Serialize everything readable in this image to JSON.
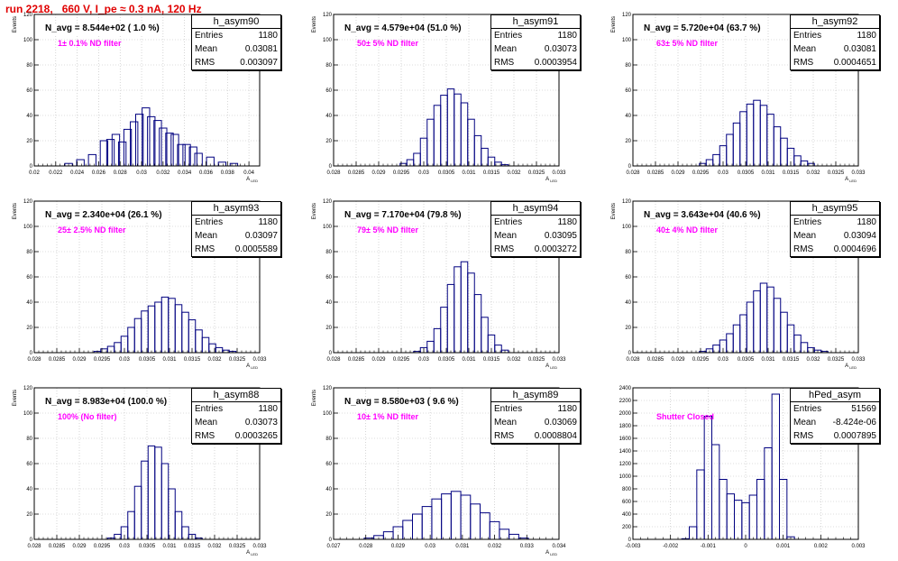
{
  "page_title": "run 2218,   660 V, I_pe ≈ 0.3 nA, 120 Hz",
  "stat_labels": {
    "entries": "Entries",
    "mean": "Mean",
    "rms": "RMS"
  },
  "colors": {
    "histogram": "#000080",
    "title": "#e00000",
    "annotation": "#ff00ff",
    "grid": "#bbbbbb"
  },
  "chart_data": [
    {
      "type": "bar",
      "name": "h_asym90",
      "navg": "N_avg = 8.544e+02 ( 1.0 %)",
      "note": "1± 0.1% ND filter",
      "entries": "1180",
      "mean": "0.03081",
      "rms": "0.003097",
      "ylabel": "Events",
      "xlabel": "A_LED",
      "xlim": [
        0.02,
        0.041
      ],
      "ylim": [
        0,
        120
      ],
      "xticks": [
        0.02,
        0.022,
        0.024,
        0.026,
        0.028,
        0.03,
        0.032,
        0.034,
        0.036,
        0.038,
        0.04
      ],
      "xtick_labels": [
        "0.02",
        "0.022",
        "0.024",
        "0.026",
        "0.028",
        "0.03",
        "0.032",
        "0.034",
        "0.036",
        "0.038",
        "0.04"
      ],
      "yticks": [
        0,
        20,
        40,
        60,
        80,
        100,
        120
      ],
      "x": [
        0.0232,
        0.0243,
        0.0254,
        0.0265,
        0.0271,
        0.0276,
        0.0282,
        0.0287,
        0.0293,
        0.0298,
        0.0304,
        0.0309,
        0.0315,
        0.032,
        0.0326,
        0.0331,
        0.0337,
        0.0342,
        0.0348,
        0.0353,
        0.0364,
        0.0375,
        0.0386
      ],
      "values": [
        2,
        5,
        9,
        20,
        21,
        25,
        19,
        29,
        35,
        41,
        46,
        39,
        36,
        30,
        26,
        25,
        17,
        17,
        15,
        10,
        7,
        3,
        2
      ]
    },
    {
      "type": "bar",
      "name": "h_asym91",
      "navg": "N_avg = 4.579e+04 (51.0 %)",
      "note": "50± 5% ND filter",
      "entries": "1180",
      "mean": "0.03073",
      "rms": "0.0003954",
      "ylabel": "Events",
      "xlabel": "A_LED",
      "xlim": [
        0.028,
        0.033
      ],
      "ylim": [
        0,
        120
      ],
      "xticks": [
        0.028,
        0.0285,
        0.029,
        0.0295,
        0.03,
        0.0305,
        0.031,
        0.0315,
        0.032,
        0.0325,
        0.033
      ],
      "xtick_labels": [
        "0.028",
        "0.0285",
        "0.029",
        "0.0295",
        "0.03",
        "0.0305",
        "0.031",
        "0.0315",
        "0.032",
        "0.0325",
        "0.033"
      ],
      "yticks": [
        0,
        20,
        40,
        60,
        80,
        100,
        120
      ],
      "x": [
        0.02955,
        0.0297,
        0.02985,
        0.03,
        0.03015,
        0.0303,
        0.03045,
        0.0306,
        0.03075,
        0.0309,
        0.03105,
        0.0312,
        0.03135,
        0.0315,
        0.03165,
        0.0318
      ],
      "values": [
        2,
        5,
        10,
        22,
        37,
        48,
        56,
        61,
        57,
        50,
        37,
        24,
        14,
        7,
        3,
        1
      ]
    },
    {
      "type": "bar",
      "name": "h_asym92",
      "navg": "N_avg = 5.720e+04 (63.7 %)",
      "note": "63± 5% ND filter",
      "entries": "1180",
      "mean": "0.03081",
      "rms": "0.0004651",
      "ylabel": "Events",
      "xlabel": "A_LED",
      "xlim": [
        0.028,
        0.033
      ],
      "ylim": [
        0,
        120
      ],
      "xticks": [
        0.028,
        0.0285,
        0.029,
        0.0295,
        0.03,
        0.0305,
        0.031,
        0.0315,
        0.032,
        0.0325,
        0.033
      ],
      "xtick_labels": [
        "0.028",
        "0.0285",
        "0.029",
        "0.0295",
        "0.03",
        "0.0305",
        "0.031",
        "0.0315",
        "0.032",
        "0.0325",
        "0.033"
      ],
      "yticks": [
        0,
        20,
        40,
        60,
        80,
        100,
        120
      ],
      "x": [
        0.02955,
        0.0297,
        0.02985,
        0.03,
        0.03015,
        0.0303,
        0.03045,
        0.0306,
        0.03075,
        0.0309,
        0.03105,
        0.0312,
        0.03135,
        0.0315,
        0.03165,
        0.0318,
        0.03195
      ],
      "values": [
        2,
        5,
        9,
        16,
        25,
        34,
        43,
        49,
        52,
        48,
        41,
        31,
        22,
        14,
        8,
        4,
        2
      ]
    },
    {
      "type": "bar",
      "name": "h_asym93",
      "navg": "N_avg = 2.340e+04 (26.1 %)",
      "note": "25± 2.5% ND filter",
      "entries": "1180",
      "mean": "0.03097",
      "rms": "0.0005589",
      "ylabel": "Events",
      "xlabel": "A_LED",
      "xlim": [
        0.028,
        0.033
      ],
      "ylim": [
        0,
        120
      ],
      "xticks": [
        0.028,
        0.0285,
        0.029,
        0.0295,
        0.03,
        0.0305,
        0.031,
        0.0315,
        0.032,
        0.0325,
        0.033
      ],
      "xtick_labels": [
        "0.028",
        "0.0285",
        "0.029",
        "0.0295",
        "0.03",
        "0.0305",
        "0.031",
        "0.0315",
        "0.032",
        "0.0325",
        "0.033"
      ],
      "yticks": [
        0,
        20,
        40,
        60,
        80,
        100,
        120
      ],
      "x": [
        0.0294,
        0.02955,
        0.0297,
        0.02985,
        0.03,
        0.03015,
        0.0303,
        0.03045,
        0.0306,
        0.03075,
        0.0309,
        0.03105,
        0.0312,
        0.03135,
        0.0315,
        0.03165,
        0.0318,
        0.03195,
        0.0321,
        0.03225,
        0.0324
      ],
      "values": [
        1,
        3,
        5,
        8,
        13,
        20,
        27,
        33,
        37,
        40,
        44,
        43,
        38,
        32,
        26,
        18,
        12,
        7,
        4,
        2,
        1
      ]
    },
    {
      "type": "bar",
      "name": "h_asym94",
      "navg": "N_avg = 7.170e+04 (79.8 %)",
      "note": "79± 5% ND filter",
      "entries": "1180",
      "mean": "0.03095",
      "rms": "0.0003272",
      "ylabel": "Events",
      "xlabel": "A_LED",
      "xlim": [
        0.028,
        0.033
      ],
      "ylim": [
        0,
        120
      ],
      "xticks": [
        0.028,
        0.0285,
        0.029,
        0.0295,
        0.03,
        0.0305,
        0.031,
        0.0315,
        0.032,
        0.0325,
        0.033
      ],
      "xtick_labels": [
        "0.028",
        "0.0285",
        "0.029",
        "0.0295",
        "0.03",
        "0.0305",
        "0.031",
        "0.0315",
        "0.032",
        "0.0325",
        "0.033"
      ],
      "yticks": [
        0,
        20,
        40,
        60,
        80,
        100,
        120
      ],
      "x": [
        0.02985,
        0.03,
        0.03015,
        0.0303,
        0.03045,
        0.0306,
        0.03075,
        0.0309,
        0.03105,
        0.0312,
        0.03135,
        0.0315,
        0.03165,
        0.0318
      ],
      "values": [
        1,
        4,
        9,
        19,
        36,
        54,
        68,
        72,
        63,
        46,
        28,
        14,
        6,
        2
      ]
    },
    {
      "type": "bar",
      "name": "h_asym95",
      "navg": "N_avg = 3.643e+04 (40.6 %)",
      "note": "40± 4% ND filter",
      "entries": "1180",
      "mean": "0.03094",
      "rms": "0.0004696",
      "ylabel": "Events",
      "xlabel": "A_LED",
      "xlim": [
        0.028,
        0.033
      ],
      "ylim": [
        0,
        120
      ],
      "xticks": [
        0.028,
        0.0285,
        0.029,
        0.0295,
        0.03,
        0.0305,
        0.031,
        0.0315,
        0.032,
        0.0325,
        0.033
      ],
      "xtick_labels": [
        "0.028",
        "0.0285",
        "0.029",
        "0.0295",
        "0.03",
        "0.0305",
        "0.031",
        "0.0315",
        "0.032",
        "0.0325",
        "0.033"
      ],
      "yticks": [
        0,
        20,
        40,
        60,
        80,
        100,
        120
      ],
      "x": [
        0.02955,
        0.0297,
        0.02985,
        0.03,
        0.03015,
        0.0303,
        0.03045,
        0.0306,
        0.03075,
        0.0309,
        0.03105,
        0.0312,
        0.03135,
        0.0315,
        0.03165,
        0.0318,
        0.03195,
        0.0321,
        0.03225
      ],
      "values": [
        1,
        3,
        6,
        10,
        15,
        22,
        30,
        40,
        49,
        55,
        52,
        43,
        32,
        22,
        14,
        8,
        4,
        2,
        1
      ]
    },
    {
      "type": "bar",
      "name": "h_asym88",
      "navg": "N_avg = 8.983e+04 (100.0 %)",
      "note": "100% (No filter)",
      "entries": "1180",
      "mean": "0.03073",
      "rms": "0.0003265",
      "ylabel": "Events",
      "xlabel": "A_LED",
      "xlim": [
        0.028,
        0.033
      ],
      "ylim": [
        0,
        120
      ],
      "xticks": [
        0.028,
        0.0285,
        0.029,
        0.0295,
        0.03,
        0.0305,
        0.031,
        0.0315,
        0.032,
        0.0325,
        0.033
      ],
      "xtick_labels": [
        "0.028",
        "0.0285",
        "0.029",
        "0.0295",
        "0.03",
        "0.0305",
        "0.031",
        "0.0315",
        "0.032",
        "0.0325",
        "0.033"
      ],
      "yticks": [
        0,
        20,
        40,
        60,
        80,
        100,
        120
      ],
      "x": [
        0.0297,
        0.02985,
        0.03,
        0.03015,
        0.0303,
        0.03045,
        0.0306,
        0.03075,
        0.0309,
        0.03105,
        0.0312,
        0.03135,
        0.0315,
        0.03165
      ],
      "values": [
        1,
        4,
        10,
        22,
        42,
        62,
        74,
        73,
        60,
        40,
        22,
        10,
        4,
        1
      ]
    },
    {
      "type": "bar",
      "name": "h_asym89",
      "navg": "N_avg = 8.580e+03 ( 9.6 %)",
      "note": "10± 1% ND filter",
      "entries": "1180",
      "mean": "0.03069",
      "rms": "0.0008804",
      "ylabel": "Events",
      "xlabel": "A_LED",
      "xlim": [
        0.027,
        0.034
      ],
      "ylim": [
        0,
        120
      ],
      "xticks": [
        0.027,
        0.028,
        0.029,
        0.03,
        0.031,
        0.032,
        0.033,
        0.034
      ],
      "xtick_labels": [
        "0.027",
        "0.028",
        "0.029",
        "0.03",
        "0.031",
        "0.032",
        "0.033",
        "0.034"
      ],
      "yticks": [
        0,
        20,
        40,
        60,
        80,
        100,
        120
      ],
      "x": [
        0.0281,
        0.0284,
        0.0287,
        0.029,
        0.0293,
        0.0296,
        0.0299,
        0.0302,
        0.0305,
        0.0308,
        0.0311,
        0.0314,
        0.0317,
        0.032,
        0.0323,
        0.0326,
        0.0329
      ],
      "values": [
        1,
        3,
        6,
        10,
        15,
        20,
        26,
        32,
        36,
        38,
        35,
        28,
        21,
        14,
        8,
        4,
        1
      ]
    },
    {
      "type": "bar",
      "name": "hPed_asym",
      "navg": "",
      "note": "Shutter Closed",
      "entries": "51569",
      "mean": "-8.424e-06",
      "rms": "0.0007895",
      "ylabel": "",
      "xlabel": "",
      "xlim": [
        -0.003,
        0.003
      ],
      "ylim": [
        0,
        2400
      ],
      "xticks": [
        -0.003,
        -0.002,
        -0.001,
        0,
        0.001,
        0.002,
        0.003
      ],
      "xtick_labels": [
        "-0.003",
        "-0.002",
        "-0.001",
        "0",
        "0.001",
        "0.002",
        "0.003"
      ],
      "yticks": [
        0,
        200,
        400,
        600,
        800,
        1000,
        1200,
        1400,
        1600,
        1800,
        2000,
        2200,
        2400
      ],
      "x": [
        -0.0016,
        -0.0014,
        -0.0012,
        -0.001,
        -0.0008,
        -0.0006,
        -0.0004,
        -0.0002,
        0,
        0.0002,
        0.0004,
        0.0006,
        0.0008,
        0.001,
        0.0012
      ],
      "values": [
        10,
        200,
        1100,
        1950,
        1500,
        950,
        720,
        620,
        580,
        700,
        950,
        1450,
        2300,
        950,
        40
      ]
    }
  ]
}
